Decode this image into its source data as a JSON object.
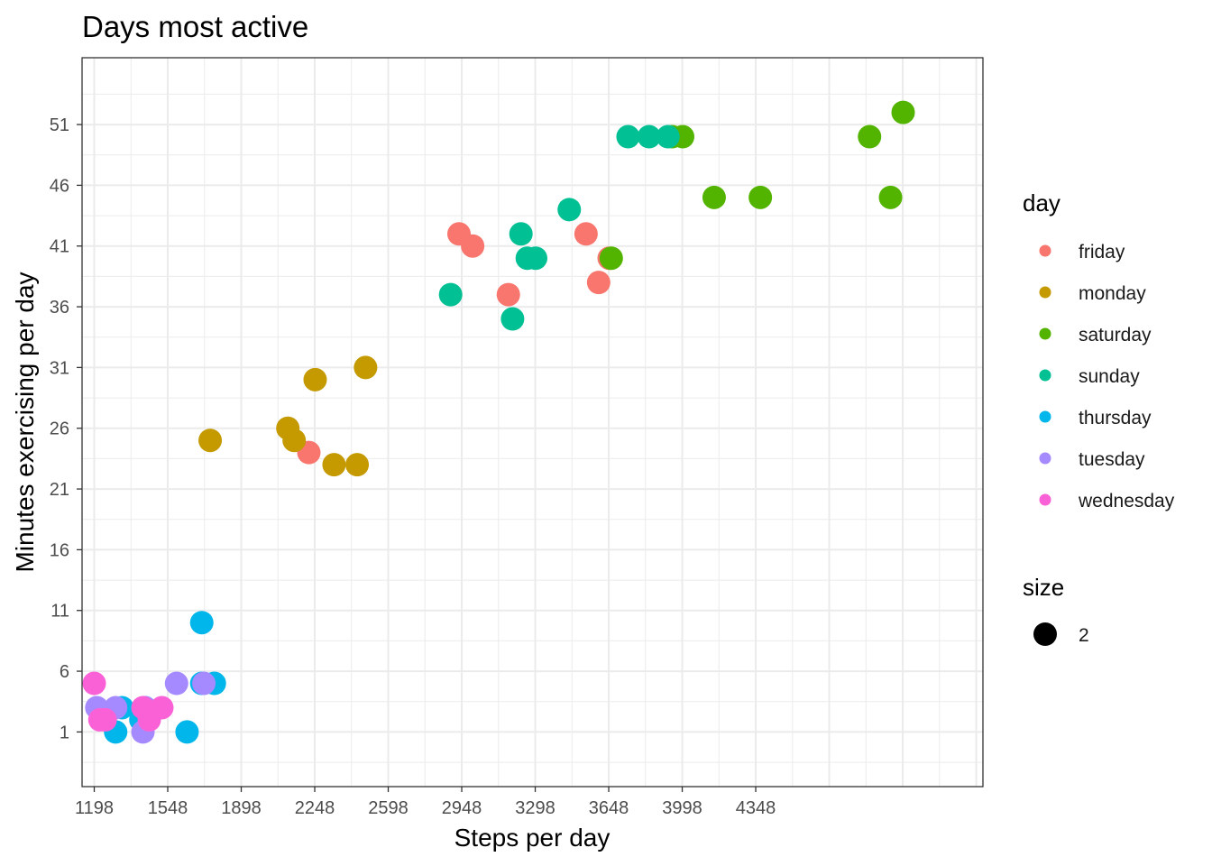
{
  "chart_data": {
    "type": "scatter",
    "title": "Days most active",
    "xlabel": "Steps per day",
    "ylabel": "Minutes exercising per day",
    "xlim": [
      1140,
      5430
    ],
    "ylim": [
      -3.5,
      56.5
    ],
    "x_ticks": [
      1198,
      1548,
      1898,
      2248,
      2598,
      2948,
      3298,
      3648,
      3998,
      4348
    ],
    "x_tick_labels": [
      "1198",
      "1548",
      "1898",
      "2248",
      "2598",
      "2948",
      "3298",
      "3648",
      "3998",
      "4348"
    ],
    "y_ticks": [
      1,
      6,
      11,
      16,
      21,
      26,
      31,
      36,
      41,
      46,
      51
    ],
    "y_tick_labels": [
      "1",
      "6",
      "11",
      "16",
      "21",
      "26",
      "31",
      "36",
      "41",
      "46",
      "51"
    ],
    "grid": true,
    "legend_position": "right",
    "legend_title": "day",
    "size_legend": {
      "title": "size",
      "label": "2"
    },
    "series": [
      {
        "name": "friday",
        "color": "#F8766D",
        "points": [
          [
            2935,
            42
          ],
          [
            3000,
            41
          ],
          [
            3170,
            37
          ],
          [
            3540,
            42
          ],
          [
            3650,
            40
          ],
          [
            3600,
            38
          ],
          [
            2220,
            24
          ]
        ]
      },
      {
        "name": "monday",
        "color": "#C49A00",
        "points": [
          [
            1750,
            25
          ],
          [
            2120,
            26
          ],
          [
            2150,
            25
          ],
          [
            2250,
            30
          ],
          [
            2340,
            23
          ],
          [
            2450,
            23
          ],
          [
            2490,
            31
          ]
        ]
      },
      {
        "name": "saturday",
        "color": "#53B400",
        "points": [
          [
            3660,
            40
          ],
          [
            3950,
            50
          ],
          [
            4000,
            50
          ],
          [
            4150,
            45
          ],
          [
            4370,
            45
          ],
          [
            4990,
            45
          ],
          [
            4890,
            50
          ],
          [
            5050,
            52
          ]
        ]
      },
      {
        "name": "sunday",
        "color": "#00C094",
        "points": [
          [
            2895,
            37
          ],
          [
            3230,
            42
          ],
          [
            3260,
            40
          ],
          [
            3300,
            40
          ],
          [
            3190,
            35
          ],
          [
            3460,
            44
          ],
          [
            3740,
            50
          ],
          [
            3840,
            50
          ],
          [
            3930,
            50
          ]
        ]
      },
      {
        "name": "thursday",
        "color": "#00B6EB",
        "points": [
          [
            1330,
            3
          ],
          [
            1300,
            1
          ],
          [
            1420,
            2
          ],
          [
            1440,
            3
          ],
          [
            1640,
            1
          ],
          [
            1710,
            5
          ],
          [
            1770,
            5
          ],
          [
            1710,
            10
          ]
        ]
      },
      {
        "name": "tuesday",
        "color": "#A58AFF",
        "points": [
          [
            1210,
            3
          ],
          [
            1300,
            3
          ],
          [
            1430,
            1
          ],
          [
            1440,
            3
          ],
          [
            1590,
            5
          ],
          [
            1720,
            5
          ]
        ]
      },
      {
        "name": "wednesday",
        "color": "#FB61D7",
        "points": [
          [
            1198,
            5
          ],
          [
            1225,
            2
          ],
          [
            1250,
            2
          ],
          [
            1460,
            2
          ],
          [
            1520,
            3
          ],
          [
            1430,
            3
          ]
        ]
      }
    ]
  }
}
